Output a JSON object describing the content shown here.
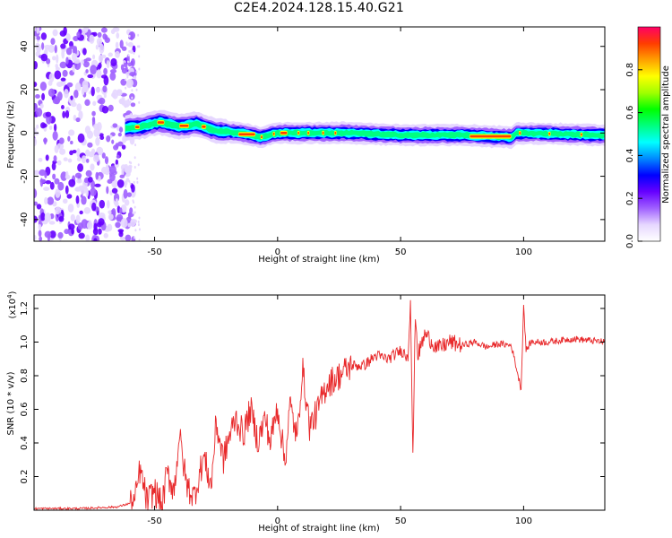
{
  "title": "C2E4.2024.128.15.40.G21",
  "colors": {
    "series": "#e8282a",
    "axis": "#000000",
    "colormap": [
      "#ffffff",
      "#e6d7ff",
      "#a060ff",
      "#6600ff",
      "#0000ff",
      "#0088ff",
      "#00ffff",
      "#00ff80",
      "#00ff00",
      "#a0ff00",
      "#ffff00",
      "#ffa000",
      "#ff3c00",
      "#ff0066"
    ]
  },
  "chart_data": [
    {
      "type": "heatmap",
      "xlabel": "Height of straight line (km)",
      "ylabel": "Frequency (Hz)",
      "xlim": [
        -99,
        133
      ],
      "ylim": [
        -50,
        49
      ],
      "xticks": [
        -50,
        0,
        50,
        100
      ],
      "yticks": [
        -40,
        -20,
        0,
        20,
        40
      ],
      "colorbar": {
        "label": "Normalized spectral amplitude",
        "range": [
          0.0,
          1.0
        ],
        "ticks": [
          0.0,
          0.2,
          0.4,
          0.6,
          0.8
        ]
      },
      "features": {
        "noise_region_x": [
          -99,
          -62
        ],
        "band_center_hz": [
          {
            "x": -63,
            "y": 2
          },
          {
            "x": -55,
            "y": 3
          },
          {
            "x": -48,
            "y": 5
          },
          {
            "x": -40,
            "y": 3
          },
          {
            "x": -33,
            "y": 4
          },
          {
            "x": -25,
            "y": 1
          },
          {
            "x": -15,
            "y": 0
          },
          {
            "x": -7,
            "y": -2
          },
          {
            "x": 0,
            "y": 0
          },
          {
            "x": 30,
            "y": 0
          },
          {
            "x": 50,
            "y": -1
          },
          {
            "x": 75,
            "y": -1
          },
          {
            "x": 95,
            "y": -2
          },
          {
            "x": 97,
            "y": 0
          },
          {
            "x": 133,
            "y": -1
          }
        ]
      }
    },
    {
      "type": "line",
      "xlabel": "Height of straight line (km)",
      "ylabel": "SNR (10 * v/v)",
      "scale_note": "(x10",
      "scale_exp": "4",
      "xlim": [
        -99,
        133
      ],
      "ylim": [
        0,
        1.28
      ],
      "xticks": [
        -50,
        0,
        50,
        100
      ],
      "yticks": [
        0.2,
        0.4,
        0.6,
        0.8,
        1.0,
        1.2
      ],
      "series": [
        {
          "x": [
            -99,
            -80,
            -65,
            -58,
            -56,
            -53,
            -50,
            -47,
            -45,
            -42,
            -40,
            -37,
            -34,
            -30,
            -27,
            -25,
            -22,
            -20,
            -17,
            -14,
            -11,
            -8,
            -5,
            -3,
            0,
            3,
            5,
            8,
            10,
            13,
            16,
            20,
            25,
            30,
            35,
            40,
            45,
            50,
            53,
            54,
            55,
            56,
            57,
            60,
            65,
            70,
            75,
            80,
            85,
            90,
            95,
            99,
            100,
            101,
            103,
            110,
            120,
            133
          ],
          "y": [
            0.01,
            0.01,
            0.02,
            0.05,
            0.24,
            0.05,
            0.12,
            0.02,
            0.22,
            0.12,
            0.45,
            0.15,
            0.08,
            0.32,
            0.14,
            0.52,
            0.3,
            0.42,
            0.55,
            0.45,
            0.6,
            0.41,
            0.55,
            0.4,
            0.62,
            0.28,
            0.63,
            0.42,
            0.85,
            0.5,
            0.58,
            0.75,
            0.8,
            0.86,
            0.86,
            0.92,
            0.9,
            0.95,
            0.92,
            1.26,
            0.3,
            1.18,
            0.92,
            1.05,
            0.96,
            1.0,
            0.98,
            1.0,
            0.97,
            0.99,
            0.98,
            0.72,
            1.22,
            0.95,
            1.0,
            1.0,
            1.02,
            1.0
          ]
        }
      ]
    }
  ]
}
